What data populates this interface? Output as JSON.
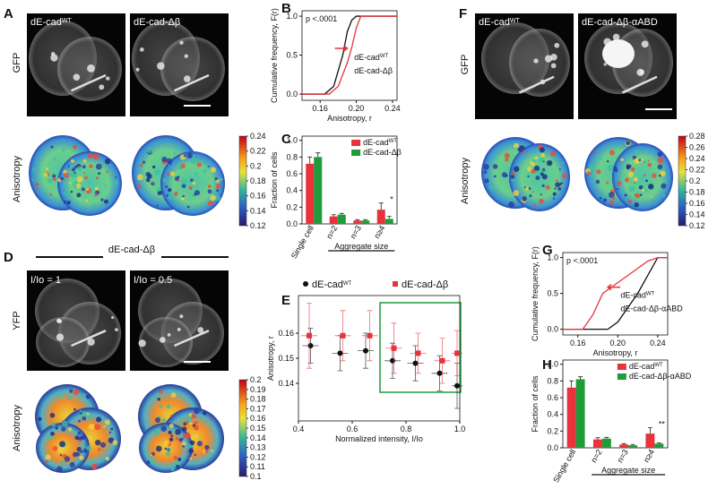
{
  "panels": {
    "A": {
      "label": "A",
      "col1": {
        "text": "dE-cad",
        "sup": "WT"
      },
      "col2": "dE-cad-Δβ",
      "row1": "GFP",
      "row2": "Anisotropy",
      "colorbar": [
        0.24,
        0.22,
        0.2,
        0.18,
        0.16,
        0.14,
        0.12
      ]
    },
    "D": {
      "label": "D",
      "header": "dE-cad-Δβ",
      "col1": "I/Io = 1",
      "col2": "I/Io = 0.5",
      "row1": "YFP",
      "row2": "Anisotropy",
      "colorbar": [
        0.2,
        0.19,
        0.18,
        0.17,
        0.16,
        0.15,
        0.14,
        0.13,
        0.12,
        0.11,
        0.1
      ]
    },
    "F": {
      "label": "F",
      "col1": {
        "text": "dE-cad",
        "sup": "WT"
      },
      "col2": "dE-cad-Δβ-αABD",
      "row1": "GFP",
      "row2": "Anisotropy",
      "colorbar": [
        0.28,
        0.26,
        0.24,
        0.22,
        0.2,
        0.18,
        0.16,
        0.14,
        0.12
      ]
    }
  },
  "chart_data": [
    {
      "type": "line",
      "label": "B",
      "xlabel": "Anisotropy, r",
      "ylabel": "Cumulative frequency, F(r)",
      "annotation": "p <.0001",
      "annotation_color": "#e8323c",
      "xlim": [
        0.14,
        0.245
      ],
      "xticks": [
        0.16,
        {
          "value": 0.2,
          "label": "0.20"
        },
        0.24
      ],
      "ylim": [
        -0.08,
        1.07
      ],
      "yticks": [
        {
          "value": 0,
          "label": "0.0"
        },
        0.5,
        {
          "value": 1,
          "label": "1.0"
        }
      ],
      "series": [
        {
          "name": "dE-cad",
          "name_sup": "WT",
          "color": "#111111",
          "x": [
            0.14,
            0.165,
            0.175,
            0.185,
            0.19,
            0.195,
            0.2,
            0.245
          ],
          "values": [
            0,
            0,
            0.1,
            0.5,
            0.8,
            0.95,
            1,
            1
          ]
        },
        {
          "name": "dE-cad-Δβ",
          "color": "#e8323c",
          "x": [
            0.14,
            0.17,
            0.18,
            0.19,
            0.195,
            0.2,
            0.205,
            0.245
          ],
          "values": [
            0,
            0,
            0.1,
            0.4,
            0.6,
            0.85,
            1,
            1
          ]
        }
      ]
    },
    {
      "type": "bar",
      "label": "C",
      "xlabel": "Aggregate size",
      "ylabel": "Fraction of cells",
      "annotation": "*",
      "categories": [
        "Single cell",
        "n=2",
        "n=3",
        "n≥4"
      ],
      "ylim": [
        0,
        1.05
      ],
      "yticks": [
        {
          "value": 0,
          "label": "0.0"
        },
        0.2,
        0.4,
        0.6,
        0.8,
        {
          "value": 1,
          "label": "1.0"
        }
      ],
      "series": [
        {
          "name": "dE-cad",
          "name_sup": "WT",
          "color": "#e8323c",
          "values": [
            0.72,
            0.09,
            0.04,
            0.17
          ],
          "errors": [
            0.08,
            0.02,
            0.01,
            0.08
          ]
        },
        {
          "name": "dE-cad-Δβ",
          "color": "#1f9b3a",
          "values": [
            0.8,
            0.11,
            0.04,
            0.06
          ],
          "errors": [
            0.05,
            0.015,
            0.01,
            0.03
          ]
        }
      ]
    },
    {
      "type": "scatter",
      "label": "E",
      "xlabel": "Normalized intensity, I/Io",
      "ylabel": "Anisotropy, r",
      "xlim": [
        0.4,
        1.0
      ],
      "xticks": [
        0.4,
        0.6,
        0.8,
        {
          "value": 1,
          "label": "1.0"
        }
      ],
      "ylim": [
        0.125,
        0.175
      ],
      "yticks": [
        0.14,
        0.15,
        0.16
      ],
      "series": [
        {
          "name": "dE-cad",
          "name_sup": "WT",
          "color": "#111111",
          "marker": "circle",
          "x": [
            0.445,
            0.555,
            0.65,
            0.75,
            0.835,
            0.925,
            0.99
          ],
          "values": [
            0.155,
            0.152,
            0.153,
            0.149,
            0.148,
            0.144,
            0.139
          ],
          "xerr": [
            0.03,
            0.03,
            0.03,
            0.03,
            0.03,
            0.03,
            0.02
          ],
          "yerr": [
            0.007,
            0.007,
            0.007,
            0.007,
            0.007,
            0.007,
            0.009
          ]
        },
        {
          "name": "dE-cad-Δβ",
          "color": "#e8323c",
          "marker": "square",
          "x": [
            0.44,
            0.565,
            0.665,
            0.755,
            0.845,
            0.935,
            0.99
          ],
          "values": [
            0.159,
            0.159,
            0.159,
            0.154,
            0.152,
            0.149,
            0.152
          ],
          "xerr": [
            0.03,
            0.03,
            0.03,
            0.03,
            0.03,
            0.03,
            0.02
          ],
          "yerr": [
            0.013,
            0.01,
            0.01,
            0.01,
            0.008,
            0.009,
            0.009
          ]
        }
      ]
    },
    {
      "type": "line",
      "label": "G",
      "xlabel": "Anisotropy, r",
      "ylabel": "Cumulative frequency, F(r)",
      "annotation": "p <.0001",
      "annotation_color": "#e8323c",
      "xlim": [
        0.145,
        0.25
      ],
      "xticks": [
        0.16,
        {
          "value": 0.2,
          "label": "0.20"
        },
        0.24
      ],
      "ylim": [
        -0.08,
        1.07
      ],
      "yticks": [
        {
          "value": 0,
          "label": "0.0"
        },
        0.5,
        {
          "value": 1,
          "label": "1.0"
        }
      ],
      "series": [
        {
          "name": "dE-cad",
          "name_sup": "WT",
          "color": "#111111",
          "x": [
            0.145,
            0.19,
            0.2,
            0.21,
            0.22,
            0.23,
            0.24,
            0.25
          ],
          "values": [
            0,
            0,
            0.1,
            0.3,
            0.5,
            0.75,
            1,
            1
          ]
        },
        {
          "name": "dE-cad-Δβ-αABD",
          "color": "#e8323c",
          "x": [
            0.145,
            0.165,
            0.175,
            0.185,
            0.195,
            0.21,
            0.22,
            0.23,
            0.24,
            0.25
          ],
          "values": [
            0,
            0,
            0.2,
            0.5,
            0.6,
            0.75,
            0.85,
            0.95,
            1,
            1
          ]
        }
      ]
    },
    {
      "type": "bar",
      "label": "H",
      "xlabel": "Aggregate size",
      "ylabel": "Fraction of cells",
      "annotation": "**",
      "categories": [
        "Single cell",
        "n=2",
        "n=3",
        "n≥4"
      ],
      "ylim": [
        0,
        1.05
      ],
      "yticks": [
        {
          "value": 0,
          "label": "0.0"
        },
        0.2,
        0.4,
        0.6,
        0.8,
        {
          "value": 1,
          "label": "1.0"
        }
      ],
      "series": [
        {
          "name": "dE-cad",
          "name_sup": "WT",
          "color": "#e8323c",
          "values": [
            0.72,
            0.1,
            0.04,
            0.17
          ],
          "errors": [
            0.08,
            0.02,
            0.01,
            0.07
          ]
        },
        {
          "name": "dE-cad-Δβ-αABD",
          "color": "#1f9b3a",
          "values": [
            0.82,
            0.11,
            0.03,
            0.05
          ],
          "errors": [
            0.03,
            0.015,
            0.01,
            0.01
          ]
        }
      ]
    }
  ]
}
